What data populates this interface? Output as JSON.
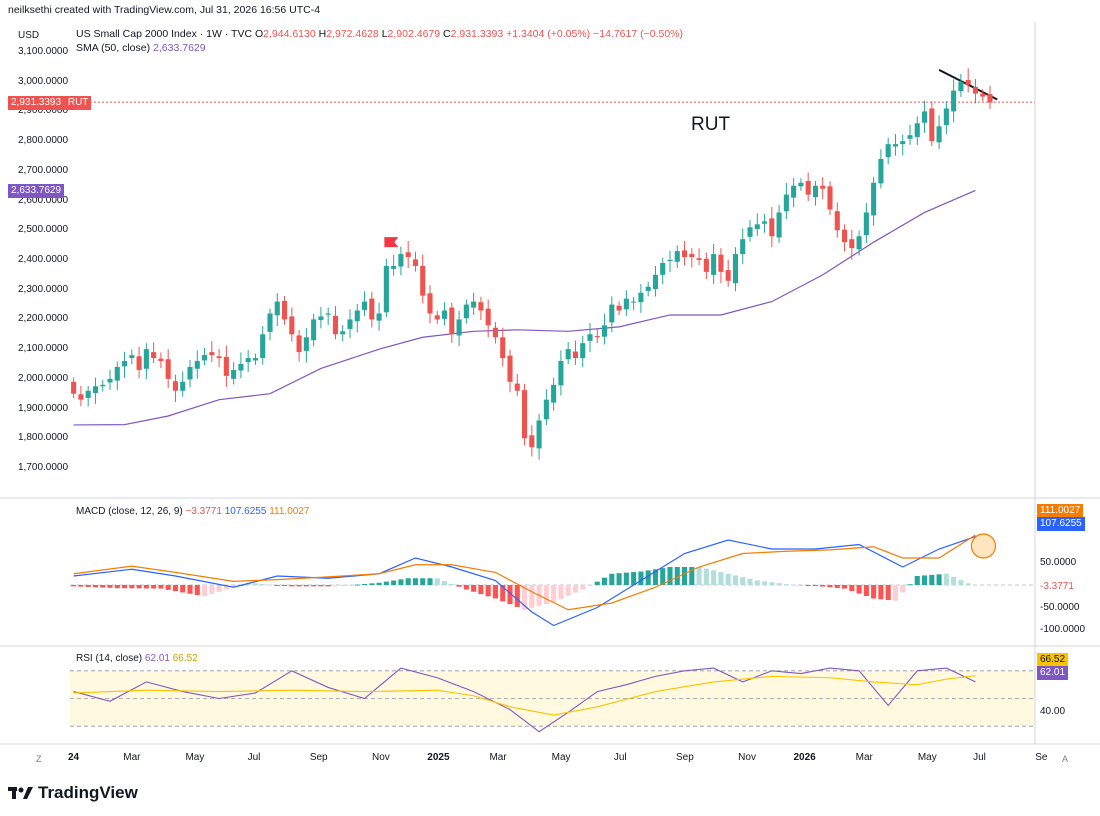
{
  "header": {
    "credit": "neilksethi created with TradingView.com, Jul 31, 2026 16:56 UTC-4",
    "currency": "USD",
    "symbol_line": "US Small Cap 2000 Index · 1W · TVC",
    "ohlc": [
      {
        "k": "O",
        "v": "2,944.6130"
      },
      {
        "k": "H",
        "v": "2,972.4628"
      },
      {
        "k": "L",
        "v": "2,902.4679"
      },
      {
        "k": "C",
        "v": "2,931.3393"
      }
    ],
    "change": "+1.3404 (+0.05%)",
    "change2": "−14.7617 (−0.50%)",
    "sma_label": "SMA (50, close)",
    "sma_value": "2,633.7629"
  },
  "annotation": "RUT",
  "price_badges": {
    "last": "2,931.3393",
    "last_tag": "RUT",
    "sma": "2,633.7629"
  },
  "macd": {
    "label": "MACD (close, 12, 26, 9)",
    "hist": "−3.3771",
    "macd": "107.6255",
    "signal": "111.0027"
  },
  "rsi": {
    "label": "RSI (14, close)",
    "rsi": "62.01",
    "ma": "66.52"
  },
  "right_axis_badges": {
    "macd_signal": "111.0027",
    "macd_line": "107.6255",
    "macd_hist": "-3.3771",
    "rsi_ma": "66.52",
    "rsi": "62.01"
  },
  "axis_buttons": {
    "left": "Z",
    "right": "A"
  },
  "footer": {
    "logo": "TradingView"
  },
  "colors": {
    "up": "#26a69a",
    "down": "#ef5350",
    "sma": "#7e57c2",
    "macd": "#2962ff",
    "signal": "#f57c00",
    "rsi": "#7e57c2",
    "rsi_ma": "#f9c300"
  },
  "chart_data": [
    {
      "type": "candlestick",
      "title": "US Small Cap 2000 Index · 1W · TVC",
      "ylabel": "USD",
      "ylim": [
        1700,
        3100
      ],
      "yticks": [
        "3,100.0000",
        "3,000.0000",
        "2,900.0000",
        "2,800.0000",
        "2,700.0000",
        "2,600.0000",
        "2,500.0000",
        "2,400.0000",
        "2,300.0000",
        "2,200.0000",
        "2,100.0000",
        "2,000.0000",
        "1,900.0000",
        "1,800.0000",
        "1,700.0000"
      ],
      "ytick_values": [
        3100,
        3000,
        2900,
        2800,
        2700,
        2600,
        2500,
        2400,
        2300,
        2200,
        2100,
        2000,
        1900,
        1800,
        1700
      ],
      "xticks": [
        "24",
        "Mar",
        "May",
        "Jul",
        "Sep",
        "Nov",
        "2025",
        "Mar",
        "May",
        "Jul",
        "Sep",
        "Nov",
        "2026",
        "Mar",
        "May",
        "Jul",
        "Se"
      ],
      "closes": [
        1950,
        1930,
        1960,
        1975,
        1980,
        2000,
        2040,
        2060,
        2080,
        2030,
        2100,
        2070,
        2060,
        2000,
        1960,
        1990,
        2040,
        2060,
        2080,
        2080,
        2070,
        2010,
        2030,
        2050,
        2070,
        2070,
        2150,
        2220,
        2260,
        2200,
        2150,
        2090,
        2140,
        2200,
        2210,
        2220,
        2150,
        2160,
        2200,
        2230,
        2260,
        2200,
        2220,
        2380,
        2380,
        2420,
        2410,
        2380,
        2280,
        2220,
        2200,
        2230,
        2150,
        2200,
        2250,
        2260,
        2230,
        2180,
        2140,
        2070,
        1990,
        1960,
        1800,
        1770,
        1860,
        1930,
        1980,
        2060,
        2100,
        2070,
        2120,
        2150,
        2140,
        2180,
        2250,
        2230,
        2270,
        2260,
        2290,
        2310,
        2350,
        2390,
        2400,
        2430,
        2410,
        2410,
        2400,
        2360,
        2420,
        2360,
        2330,
        2420,
        2470,
        2510,
        2520,
        2530,
        2480,
        2560,
        2620,
        2650,
        2660,
        2620,
        2650,
        2640,
        2570,
        2500,
        2460,
        2440,
        2480,
        2560,
        2660,
        2740,
        2790,
        2790,
        2800,
        2820,
        2860,
        2900,
        2800,
        2850,
        2910,
        2970,
        3000,
        2990,
        2960,
        2950,
        2930
      ],
      "sma50": {
        "name": "SMA (50, close)",
        "points": [
          [
            0,
            1845
          ],
          [
            7,
            1846
          ],
          [
            13,
            1875
          ],
          [
            20,
            1930
          ],
          [
            27,
            1950
          ],
          [
            34,
            2035
          ],
          [
            42,
            2100
          ],
          [
            48,
            2140
          ],
          [
            55,
            2160
          ],
          [
            61,
            2165
          ],
          [
            68,
            2160
          ],
          [
            75,
            2175
          ],
          [
            82,
            2215
          ],
          [
            89,
            2215
          ],
          [
            96,
            2260
          ],
          [
            103,
            2350
          ],
          [
            110,
            2460
          ],
          [
            117,
            2560
          ],
          [
            124,
            2634
          ]
        ]
      }
    },
    {
      "type": "line",
      "title": "MACD (close, 12, 26, 9)",
      "ylim": [
        -100,
        150
      ],
      "yticks": [
        "150.0000",
        "50.0000",
        "-50.0000",
        "-100.0000"
      ],
      "ytick_values": [
        150,
        50,
        -50,
        -100
      ],
      "series": [
        {
          "name": "MACD",
          "points": [
            [
              0,
              20
            ],
            [
              8,
              35
            ],
            [
              14,
              20
            ],
            [
              22,
              -5
            ],
            [
              28,
              20
            ],
            [
              35,
              15
            ],
            [
              42,
              25
            ],
            [
              47,
              60
            ],
            [
              52,
              40
            ],
            [
              58,
              10
            ],
            [
              63,
              -60
            ],
            [
              66,
              -90
            ],
            [
              72,
              -50
            ],
            [
              78,
              10
            ],
            [
              84,
              70
            ],
            [
              90,
              100
            ],
            [
              96,
              80
            ],
            [
              102,
              80
            ],
            [
              108,
              90
            ],
            [
              114,
              40
            ],
            [
              119,
              80
            ],
            [
              124,
              107.6255
            ]
          ]
        },
        {
          "name": "Signal",
          "points": [
            [
              0,
              25
            ],
            [
              8,
              42
            ],
            [
              14,
              28
            ],
            [
              22,
              8
            ],
            [
              28,
              12
            ],
            [
              35,
              18
            ],
            [
              42,
              25
            ],
            [
              47,
              45
            ],
            [
              52,
              45
            ],
            [
              58,
              28
            ],
            [
              63,
              -15
            ],
            [
              68,
              -55
            ],
            [
              74,
              -40
            ],
            [
              80,
              -5
            ],
            [
              86,
              40
            ],
            [
              92,
              70
            ],
            [
              98,
              75
            ],
            [
              104,
              78
            ],
            [
              110,
              85
            ],
            [
              114,
              60
            ],
            [
              119,
              60
            ],
            [
              124,
              111.0027
            ]
          ]
        }
      ],
      "histogram": [
        [
          0,
          -3
        ],
        [
          6,
          -7
        ],
        [
          12,
          -8
        ],
        [
          18,
          -25
        ],
        [
          24,
          5
        ],
        [
          30,
          -3
        ],
        [
          36,
          -3
        ],
        [
          42,
          5
        ],
        [
          46,
          15
        ],
        [
          50,
          15
        ],
        [
          54,
          -10
        ],
        [
          58,
          -30
        ],
        [
          62,
          -55
        ],
        [
          66,
          -38
        ],
        [
          70,
          -10
        ],
        [
          74,
          25
        ],
        [
          78,
          30
        ],
        [
          82,
          40
        ],
        [
          86,
          40
        ],
        [
          90,
          25
        ],
        [
          94,
          10
        ],
        [
          98,
          2
        ],
        [
          102,
          -2
        ],
        [
          106,
          -8
        ],
        [
          110,
          -30
        ],
        [
          113,
          -35
        ],
        [
          116,
          20
        ],
        [
          120,
          25
        ],
        [
          124,
          -3.3771
        ]
      ]
    },
    {
      "type": "line",
      "title": "RSI (14, close)",
      "ylim": [
        20,
        80
      ],
      "yticks": [
        "40.00"
      ],
      "ytick_values": [
        40
      ],
      "series": [
        {
          "name": "RSI",
          "points": [
            [
              0,
              55
            ],
            [
              5,
              48
            ],
            [
              10,
              62
            ],
            [
              15,
              55
            ],
            [
              20,
              50
            ],
            [
              25,
              54
            ],
            [
              30,
              70
            ],
            [
              35,
              58
            ],
            [
              40,
              50
            ],
            [
              45,
              72
            ],
            [
              50,
              65
            ],
            [
              55,
              55
            ],
            [
              60,
              42
            ],
            [
              64,
              26
            ],
            [
              68,
              40
            ],
            [
              72,
              55
            ],
            [
              76,
              60
            ],
            [
              80,
              66
            ],
            [
              84,
              70
            ],
            [
              88,
              72
            ],
            [
              92,
              62
            ],
            [
              96,
              70
            ],
            [
              100,
              68
            ],
            [
              104,
              72
            ],
            [
              108,
              70
            ],
            [
              112,
              45
            ],
            [
              116,
              70
            ],
            [
              120,
              72
            ],
            [
              124,
              62.01
            ]
          ]
        },
        {
          "name": "RSI MA",
          "points": [
            [
              0,
              54
            ],
            [
              10,
              56
            ],
            [
              20,
              55
            ],
            [
              30,
              56
            ],
            [
              40,
              55
            ],
            [
              50,
              56
            ],
            [
              55,
              52
            ],
            [
              60,
              44
            ],
            [
              66,
              38
            ],
            [
              72,
              44
            ],
            [
              80,
              55
            ],
            [
              88,
              62
            ],
            [
              96,
              66
            ],
            [
              104,
              65
            ],
            [
              110,
              62
            ],
            [
              116,
              60
            ],
            [
              120,
              64
            ],
            [
              124,
              66.52
            ]
          ]
        }
      ]
    }
  ]
}
